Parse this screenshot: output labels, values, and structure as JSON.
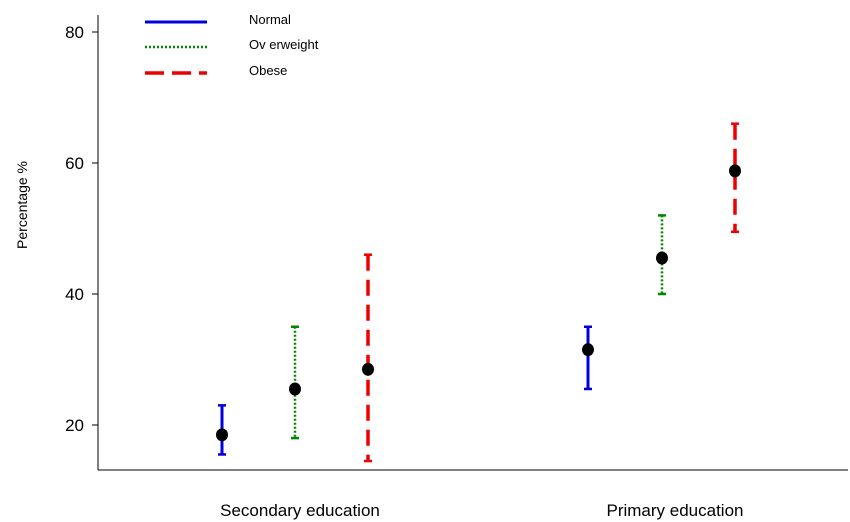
{
  "chart_data": {
    "type": "scatter",
    "ylabel": "Percentage %",
    "xlabel": "",
    "ylim": [
      13,
      83
    ],
    "yticks": [
      20,
      40,
      60,
      80
    ],
    "categories": [
      "Secondary education",
      "Primary education"
    ],
    "series": [
      {
        "name": "Normal",
        "color": "#0000dd",
        "line_style": "solid",
        "points": [
          {
            "category": "Secondary education",
            "value": 18.5,
            "lower": 15.5,
            "upper": 23
          },
          {
            "category": "Primary education",
            "value": 31.5,
            "lower": 25.5,
            "upper": 35
          }
        ]
      },
      {
        "name": "Ov erweight",
        "color": "#008800",
        "line_style": "dotted",
        "points": [
          {
            "category": "Secondary education",
            "value": 25.5,
            "lower": 18,
            "upper": 35
          },
          {
            "category": "Primary education",
            "value": 45.5,
            "lower": 40,
            "upper": 52
          }
        ]
      },
      {
        "name": "Obese",
        "color": "#ee0000",
        "line_style": "dashed",
        "points": [
          {
            "category": "Secondary education",
            "value": 28.5,
            "lower": 14.5,
            "upper": 46
          },
          {
            "category": "Primary education",
            "value": 58.8,
            "lower": 49.5,
            "upper": 66
          }
        ]
      }
    ],
    "legend_position": "top-left",
    "grid": false
  }
}
